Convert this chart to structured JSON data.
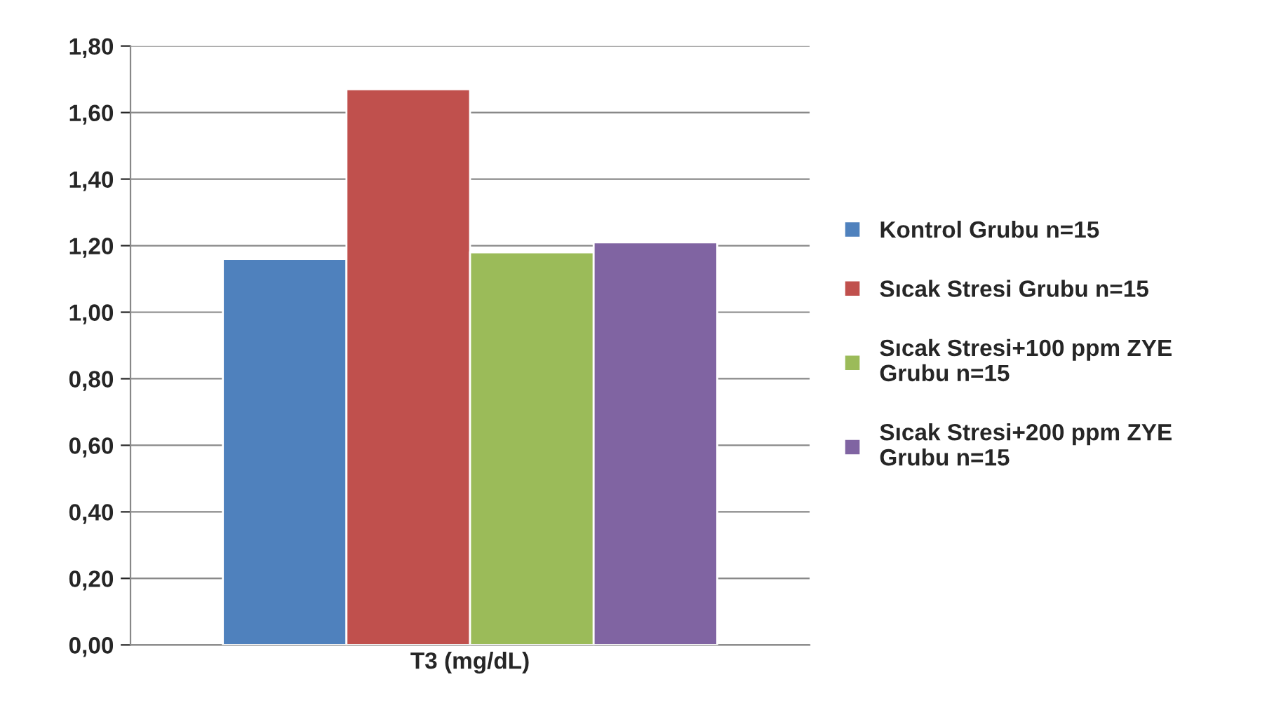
{
  "chart_data": {
    "type": "bar",
    "categories": [
      "T3 (mg/dL)"
    ],
    "series": [
      {
        "name": "Kontrol Grubu n=15",
        "color": "#4f81bd",
        "values": [
          1.16
        ]
      },
      {
        "name": "Sıcak Stresi Grubu n=15",
        "color": "#c0504d",
        "values": [
          1.67
        ]
      },
      {
        "name": "Sıcak Stresi+100 ppm ZYE\nGrubu n=15",
        "color": "#9bbb59",
        "values": [
          1.18
        ]
      },
      {
        "name": "Sıcak Stresi+200 ppm ZYE\nGrubu n=15",
        "color": "#8064a2",
        "values": [
          1.21
        ]
      }
    ],
    "ylim": [
      0,
      1.8
    ],
    "yticks": [
      {
        "value": 0,
        "label": "0,00"
      },
      {
        "value": 0.2,
        "label": "0,20"
      },
      {
        "value": 0.4,
        "label": "0,40"
      },
      {
        "value": 0.6,
        "label": "0,60"
      },
      {
        "value": 0.8,
        "label": "0,80"
      },
      {
        "value": 1.0,
        "label": "1,00"
      },
      {
        "value": 1.2,
        "label": "1,20"
      },
      {
        "value": 1.4,
        "label": "1,40"
      },
      {
        "value": 1.6,
        "label": "1,60"
      },
      {
        "value": 1.8,
        "label": "1,80"
      }
    ],
    "grid": "y",
    "legend": "right"
  }
}
